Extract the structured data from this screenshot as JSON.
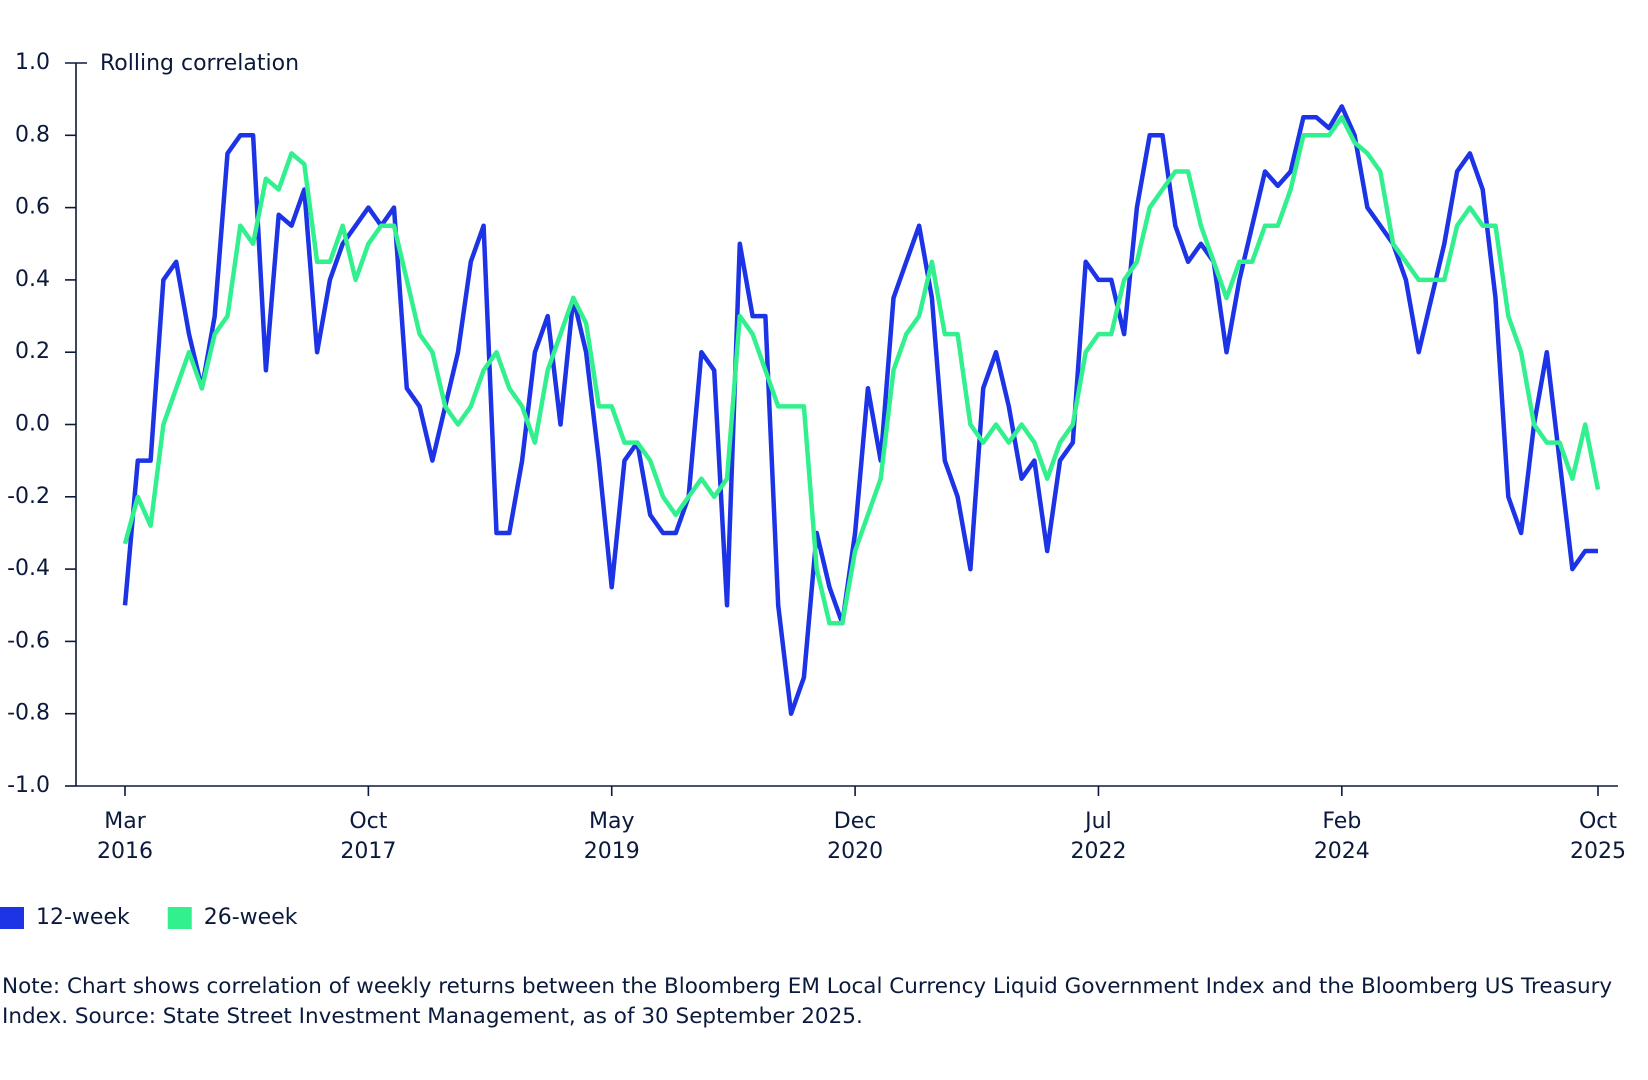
{
  "chart_data": {
    "type": "line",
    "y_label": "Rolling correlation",
    "note": "Note: Chart shows correlation of weekly returns between the Bloomberg EM Local Currency Liquid Government Index and the Bloomberg US Treasury Index. Source: State Street Investment Management, as of 30 September 2025.",
    "x": [
      "2016-03",
      "2016-04",
      "2016-05",
      "2016-06",
      "2016-07",
      "2016-08",
      "2016-09",
      "2016-10",
      "2016-11",
      "2016-12",
      "2017-01",
      "2017-02",
      "2017-03",
      "2017-04",
      "2017-05",
      "2017-06",
      "2017-07",
      "2017-08",
      "2017-09",
      "2017-10",
      "2017-11",
      "2017-12",
      "2018-01",
      "2018-02",
      "2018-03",
      "2018-04",
      "2018-05",
      "2018-06",
      "2018-07",
      "2018-08",
      "2018-09",
      "2018-10",
      "2018-11",
      "2018-12",
      "2019-01",
      "2019-02",
      "2019-03",
      "2019-04",
      "2019-05",
      "2019-06",
      "2019-07",
      "2019-08",
      "2019-09",
      "2019-10",
      "2019-11",
      "2019-12",
      "2020-01",
      "2020-02",
      "2020-03",
      "2020-04",
      "2020-05",
      "2020-06",
      "2020-07",
      "2020-08",
      "2020-09",
      "2020-10",
      "2020-11",
      "2020-12",
      "2021-01",
      "2021-02",
      "2021-03",
      "2021-04",
      "2021-05",
      "2021-06",
      "2021-07",
      "2021-08",
      "2021-09",
      "2021-10",
      "2021-11",
      "2021-12",
      "2022-01",
      "2022-02",
      "2022-03",
      "2022-04",
      "2022-05",
      "2022-06",
      "2022-07",
      "2022-08",
      "2022-09",
      "2022-10",
      "2022-11",
      "2022-12",
      "2023-01",
      "2023-02",
      "2023-03",
      "2023-04",
      "2023-05",
      "2023-06",
      "2023-07",
      "2023-08",
      "2023-09",
      "2023-10",
      "2023-11",
      "2023-12",
      "2024-01",
      "2024-02",
      "2024-03",
      "2024-04",
      "2024-05",
      "2024-06",
      "2024-07",
      "2024-08",
      "2024-09",
      "2024-10",
      "2024-11",
      "2024-12",
      "2025-01",
      "2025-02",
      "2025-03",
      "2025-04",
      "2025-05",
      "2025-06",
      "2025-07",
      "2025-08",
      "2025-09",
      "2025-10"
    ],
    "series": [
      {
        "name": "12-week",
        "color": "#1c33e6",
        "values": [
          -0.5,
          -0.1,
          -0.1,
          0.4,
          0.45,
          0.25,
          0.1,
          0.3,
          0.75,
          0.8,
          0.8,
          0.15,
          0.58,
          0.55,
          0.65,
          0.2,
          0.4,
          0.5,
          0.55,
          0.6,
          0.55,
          0.6,
          0.1,
          0.05,
          -0.1,
          0.05,
          0.2,
          0.45,
          0.55,
          -0.3,
          -0.3,
          -0.1,
          0.2,
          0.3,
          0.0,
          0.35,
          0.2,
          -0.1,
          -0.45,
          -0.1,
          -0.05,
          -0.25,
          -0.3,
          -0.3,
          -0.2,
          0.2,
          0.15,
          -0.5,
          0.5,
          0.3,
          0.3,
          -0.5,
          -0.8,
          -0.7,
          -0.3,
          -0.45,
          -0.55,
          -0.3,
          0.1,
          -0.1,
          0.35,
          0.45,
          0.55,
          0.35,
          -0.1,
          -0.2,
          -0.4,
          0.1,
          0.2,
          0.05,
          -0.15,
          -0.1,
          -0.35,
          -0.1,
          -0.05,
          0.45,
          0.4,
          0.4,
          0.25,
          0.6,
          0.8,
          0.8,
          0.55,
          0.45,
          0.5,
          0.45,
          0.2,
          0.4,
          0.55,
          0.7,
          0.66,
          0.7,
          0.85,
          0.85,
          0.82,
          0.88,
          0.8,
          0.6,
          0.55,
          0.5,
          0.4,
          0.2,
          0.35,
          0.5,
          0.7,
          0.75,
          0.65,
          0.35,
          -0.2,
          -0.3,
          0.0,
          0.2,
          -0.1,
          -0.4,
          -0.35,
          -0.35
        ]
      },
      {
        "name": "26-week",
        "color": "#33f08f",
        "values": [
          -0.33,
          -0.2,
          -0.28,
          0.0,
          0.1,
          0.2,
          0.1,
          0.25,
          0.3,
          0.55,
          0.5,
          0.68,
          0.65,
          0.75,
          0.72,
          0.45,
          0.45,
          0.55,
          0.4,
          0.5,
          0.55,
          0.55,
          0.4,
          0.25,
          0.2,
          0.05,
          0.0,
          0.05,
          0.15,
          0.2,
          0.1,
          0.05,
          -0.05,
          0.15,
          0.25,
          0.35,
          0.28,
          0.05,
          0.05,
          -0.05,
          -0.05,
          -0.1,
          -0.2,
          -0.25,
          -0.2,
          -0.15,
          -0.2,
          -0.15,
          0.3,
          0.25,
          0.15,
          0.05,
          0.05,
          0.05,
          -0.4,
          -0.55,
          -0.55,
          -0.35,
          -0.25,
          -0.15,
          0.15,
          0.25,
          0.3,
          0.45,
          0.25,
          0.25,
          0.0,
          -0.05,
          0.0,
          -0.05,
          0.0,
          -0.05,
          -0.15,
          -0.05,
          0.0,
          0.2,
          0.25,
          0.25,
          0.4,
          0.45,
          0.6,
          0.65,
          0.7,
          0.7,
          0.55,
          0.45,
          0.35,
          0.45,
          0.45,
          0.55,
          0.55,
          0.65,
          0.8,
          0.8,
          0.8,
          0.85,
          0.78,
          0.75,
          0.7,
          0.5,
          0.45,
          0.4,
          0.4,
          0.4,
          0.55,
          0.6,
          0.55,
          0.55,
          0.3,
          0.2,
          0.0,
          -0.05,
          -0.05,
          -0.15,
          0.0,
          -0.18
        ]
      }
    ],
    "xlim": [
      "2016-03",
      "2025-10"
    ],
    "xticks": [
      {
        "value": "2016-03",
        "label": "Mar 2016"
      },
      {
        "value": "2017-10",
        "label": "Oct 2017"
      },
      {
        "value": "2019-05",
        "label": "May 2019"
      },
      {
        "value": "2020-12",
        "label": "Dec 2020"
      },
      {
        "value": "2022-07",
        "label": "Jul 2022"
      },
      {
        "value": "2024-02",
        "label": "Feb 2024"
      },
      {
        "value": "2025-10",
        "label": "Oct 2025"
      }
    ],
    "ylim": [
      -1,
      1
    ],
    "yticks": [
      {
        "value": -1,
        "label": "-1.0"
      },
      -0.8,
      -0.6,
      -0.4,
      -0.2,
      {
        "value": 0,
        "label": "0.0"
      },
      0.2,
      0.4,
      0.6,
      0.8,
      {
        "value": 1,
        "label": "1.0"
      }
    ],
    "legend": "bottom-left"
  }
}
